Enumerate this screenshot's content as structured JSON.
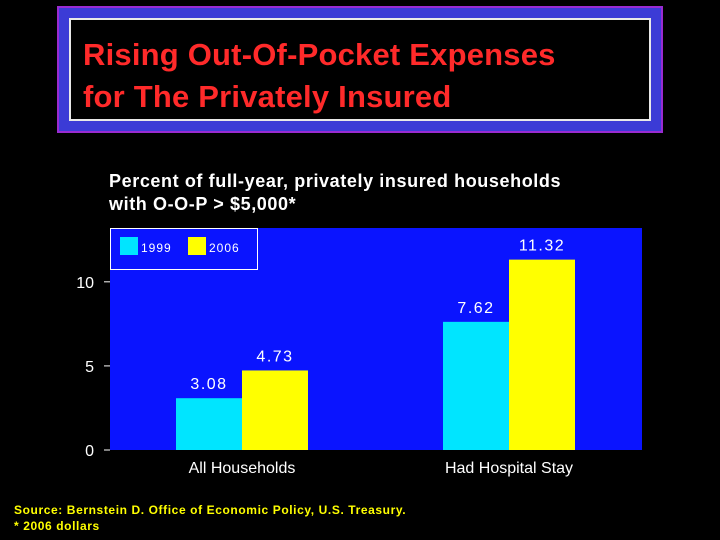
{
  "header": {
    "title_line1": "Rising Out-Of-Pocket Expenses",
    "title_line2": "for The Privately Insured"
  },
  "subtitle_line1": "Percent of full-year, privately insured households",
  "subtitle_line2": "with O-O-P > $5,000*",
  "footer": {
    "source": "Source: Bernstein D. Office of Economic Policy, U.S. Treasury.",
    "note": "* 2006 dollars"
  },
  "colors": {
    "plot_bg": "#0a14ff",
    "series_1999": "#00e5ff",
    "series_2006": "#ffff00",
    "title_text": "#ff2a2a",
    "frame": "#3b3bd6"
  },
  "chart_data": {
    "type": "bar",
    "categories": [
      "All Households",
      "Had Hospital Stay"
    ],
    "series": [
      {
        "name": "1999",
        "values": [
          3.08,
          7.62
        ],
        "labels": [
          "3.08",
          "7.62"
        ],
        "color": "#00e5ff"
      },
      {
        "name": "2006",
        "values": [
          4.73,
          11.32
        ],
        "labels": [
          "4.73",
          "11.32"
        ],
        "color": "#ffff00"
      }
    ],
    "yticks": [
      0,
      5,
      10
    ],
    "ytick_labels": [
      "0",
      "5",
      "10"
    ],
    "ylim": [
      0,
      13.2
    ],
    "legend_position": "top-left",
    "grid": false
  }
}
